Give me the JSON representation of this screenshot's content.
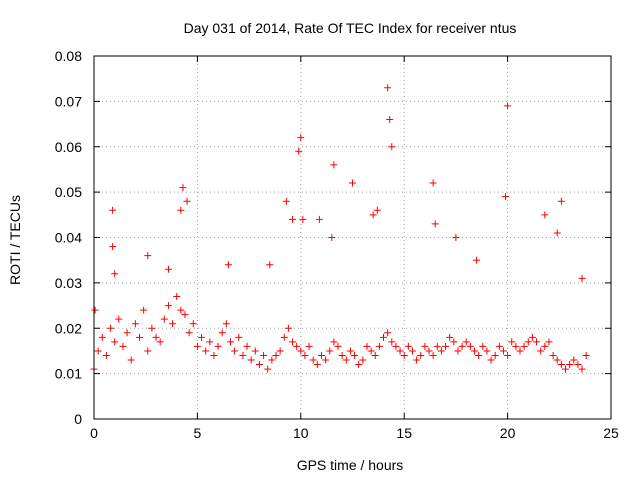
{
  "chart_data": {
    "type": "scatter",
    "title": "Day 031 of 2014, Rate Of TEC Index for receiver ntus",
    "xlabel": "GPS time / hours",
    "ylabel": "ROTI / TECUs",
    "xlim": [
      0,
      25
    ],
    "ylim": [
      0,
      0.08
    ],
    "xticks": [
      0,
      5,
      10,
      15,
      20,
      25
    ],
    "xtick_labels": [
      "0",
      "5",
      "10",
      "15",
      "20",
      "25"
    ],
    "yticks": [
      0,
      0.01,
      0.02,
      0.03,
      0.04,
      0.05,
      0.06,
      0.07,
      0.08
    ],
    "ytick_labels": [
      "0",
      "0.01",
      "0.02",
      "0.03",
      "0.04",
      "0.05",
      "0.06",
      "0.07",
      "0.08"
    ],
    "grid": true,
    "marker": "+",
    "color": "#ff0000",
    "series": [
      {
        "name": "ROTI",
        "x": [
          0.0,
          0.2,
          0.4,
          0.6,
          0.8,
          1.0,
          1.2,
          1.4,
          1.6,
          1.8,
          2.0,
          2.2,
          2.4,
          2.6,
          2.8,
          3.0,
          3.2,
          3.4,
          3.6,
          3.8,
          4.0,
          4.2,
          4.4,
          4.6,
          4.8,
          5.0,
          5.2,
          5.4,
          5.6,
          5.8,
          6.0,
          6.2,
          6.4,
          6.6,
          6.8,
          7.0,
          7.2,
          7.4,
          7.6,
          7.8,
          8.0,
          8.2,
          8.4,
          8.6,
          8.8,
          9.0,
          9.2,
          9.4,
          9.6,
          9.8,
          10.0,
          10.2,
          10.4,
          10.6,
          10.8,
          11.0,
          11.2,
          11.4,
          11.6,
          11.8,
          12.0,
          12.2,
          12.4,
          12.6,
          12.8,
          13.0,
          13.2,
          13.4,
          13.6,
          13.8,
          14.0,
          14.2,
          14.4,
          14.6,
          14.8,
          15.0,
          15.2,
          15.4,
          15.6,
          15.8,
          16.0,
          16.2,
          16.4,
          16.6,
          16.8,
          17.0,
          17.2,
          17.4,
          17.6,
          17.8,
          18.0,
          18.2,
          18.4,
          18.6,
          18.8,
          19.0,
          19.2,
          19.4,
          19.6,
          19.8,
          20.0,
          20.2,
          20.4,
          20.6,
          20.8,
          21.0,
          21.2,
          21.4,
          21.6,
          21.8,
          22.0,
          22.2,
          22.4,
          22.6,
          22.8,
          23.0,
          23.2,
          23.4,
          23.6,
          23.8,
          0.05,
          0.9,
          0.9,
          1.0,
          2.6,
          3.6,
          4.2,
          4.3,
          4.5,
          6.5,
          8.5,
          9.3,
          9.6,
          9.9,
          10.0,
          10.1,
          10.9,
          11.5,
          11.6,
          12.5,
          13.5,
          13.7,
          14.2,
          14.3,
          14.4,
          16.4,
          16.5,
          17.5,
          18.5,
          19.9,
          20.0,
          21.8,
          22.4,
          22.6,
          23.6
        ],
        "y": [
          0.011,
          0.015,
          0.018,
          0.014,
          0.02,
          0.017,
          0.022,
          0.016,
          0.019,
          0.013,
          0.021,
          0.018,
          0.024,
          0.015,
          0.02,
          0.018,
          0.017,
          0.022,
          0.025,
          0.021,
          0.027,
          0.024,
          0.023,
          0.019,
          0.021,
          0.016,
          0.018,
          0.015,
          0.017,
          0.014,
          0.016,
          0.019,
          0.021,
          0.017,
          0.015,
          0.018,
          0.014,
          0.016,
          0.013,
          0.015,
          0.012,
          0.014,
          0.011,
          0.013,
          0.014,
          0.015,
          0.018,
          0.02,
          0.017,
          0.016,
          0.015,
          0.014,
          0.016,
          0.013,
          0.012,
          0.014,
          0.013,
          0.015,
          0.017,
          0.016,
          0.014,
          0.013,
          0.015,
          0.014,
          0.012,
          0.013,
          0.016,
          0.015,
          0.014,
          0.016,
          0.018,
          0.019,
          0.017,
          0.016,
          0.015,
          0.014,
          0.016,
          0.015,
          0.013,
          0.014,
          0.016,
          0.015,
          0.014,
          0.016,
          0.015,
          0.016,
          0.018,
          0.017,
          0.015,
          0.016,
          0.017,
          0.016,
          0.015,
          0.014,
          0.016,
          0.015,
          0.013,
          0.014,
          0.016,
          0.015,
          0.014,
          0.017,
          0.016,
          0.015,
          0.016,
          0.017,
          0.018,
          0.017,
          0.015,
          0.016,
          0.017,
          0.014,
          0.013,
          0.012,
          0.011,
          0.012,
          0.013,
          0.012,
          0.011,
          0.014,
          0.024,
          0.046,
          0.038,
          0.032,
          0.036,
          0.033,
          0.046,
          0.051,
          0.048,
          0.034,
          0.034,
          0.048,
          0.044,
          0.059,
          0.062,
          0.044,
          0.044,
          0.04,
          0.056,
          0.052,
          0.045,
          0.046,
          0.073,
          0.066,
          0.06,
          0.052,
          0.043,
          0.04,
          0.035,
          0.049,
          0.069,
          0.045,
          0.041,
          0.048,
          0.031
        ]
      }
    ]
  }
}
